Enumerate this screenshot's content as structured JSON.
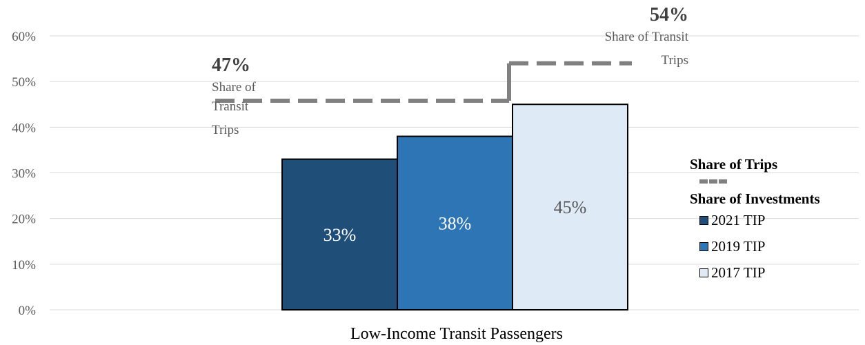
{
  "chart_data": {
    "type": "bar",
    "categories": [
      "Low-Income Transit Passengers"
    ],
    "xlabel": "Low-Income Transit Passengers",
    "ylim": [
      0,
      60
    ],
    "yticks": [
      "0%",
      "10%",
      "20%",
      "30%",
      "40%",
      "50%",
      "60%"
    ],
    "grid": true,
    "series": [
      {
        "name": "2021 TIP",
        "values": [
          33
        ],
        "label": "33%",
        "color": "#1f4e79",
        "label_color": "#ffffff"
      },
      {
        "name": "2019 TIP",
        "values": [
          38
        ],
        "label": "38%",
        "color": "#2e75b6",
        "label_color": "#ffffff"
      },
      {
        "name": "2017 TIP",
        "values": [
          45
        ],
        "label": "45%",
        "color": "#deebf7",
        "label_color": "#595959"
      }
    ],
    "reference_lines": [
      {
        "value": 47,
        "label_value": "47%",
        "label_lines": [
          "Share of",
          "Transit",
          "Trips"
        ],
        "color": "#808080"
      },
      {
        "value": 54,
        "label_value": "54%",
        "label_lines": [
          "Share of Transit",
          "Trips"
        ],
        "color": "#808080"
      }
    ],
    "legend": {
      "placement": "right",
      "trips_header": "Share of Trips",
      "investments_header": "Share of Investments"
    }
  }
}
